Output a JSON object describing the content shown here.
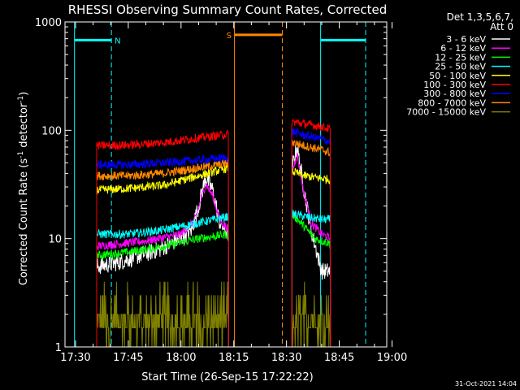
{
  "chart_data": {
    "type": "line",
    "title": "RHESSI Observing Summary Count Rates, Corrected",
    "xlabel": "Start Time (26-Sep-15 17:22:22)",
    "ylabel_main": "Corrected Count Rate (s",
    "ylabel_sup1": "-1",
    "ylabel_mid": " detector",
    "ylabel_sup2": "-1",
    "ylabel_end": ")",
    "timestamp": "31-Oct-2021 14:04",
    "y_scale": "log",
    "ylim": [
      1,
      1000
    ],
    "xlim_minutes": [
      -3.0,
      88.5
    ],
    "x_ticks": [
      {
        "label": "17:30",
        "value": 0
      },
      {
        "label": "17:45",
        "value": 15
      },
      {
        "label": "18:00",
        "value": 30
      },
      {
        "label": "18:15",
        "value": 45
      },
      {
        "label": "18:30",
        "value": 60
      },
      {
        "label": "18:45",
        "value": 75
      },
      {
        "label": "19:00",
        "value": 90
      }
    ],
    "y_ticks": [
      {
        "label": "1",
        "value": 1
      },
      {
        "label": "10",
        "value": 10
      },
      {
        "label": "100",
        "value": 100
      },
      {
        "label": "1000",
        "value": 1000
      }
    ],
    "legend": {
      "title_line1": "Det 1,3,5,6,7,",
      "title_line2": "Att 0",
      "placement": "right"
    },
    "markers": [
      {
        "label": "N",
        "color": "#00ffff",
        "start": -0.3,
        "end": 10.2,
        "level": 680
      },
      {
        "label": "S",
        "color": "#ff8800",
        "start": 45.2,
        "end": 58.8,
        "level": 760
      },
      {
        "label": "",
        "color": "#00ffff",
        "start": 69.7,
        "end": 82.5,
        "level": 680
      }
    ],
    "segments": [
      [
        6,
        43.5
      ],
      [
        61.5,
        72.5
      ]
    ],
    "series": [
      {
        "name": "3 - 6 keV",
        "color": "#ffffff",
        "seg1": [
          [
            6,
            5.5
          ],
          [
            12,
            6
          ],
          [
            24,
            8
          ],
          [
            30,
            10
          ],
          [
            33,
            12
          ],
          [
            35,
            20
          ],
          [
            37,
            37
          ],
          [
            39,
            28
          ],
          [
            41,
            14
          ],
          [
            43.5,
            11
          ]
        ],
        "seg2": [
          [
            61.5,
            45
          ],
          [
            63,
            70
          ],
          [
            65,
            28
          ],
          [
            67,
            12
          ],
          [
            70,
            5
          ],
          [
            72.5,
            5
          ]
        ]
      },
      {
        "name": "6 - 12 keV",
        "color": "#ff00ff",
        "seg1": [
          [
            6,
            8.5
          ],
          [
            20,
            9.5
          ],
          [
            30,
            11
          ],
          [
            34,
            15
          ],
          [
            37,
            32
          ],
          [
            39,
            25
          ],
          [
            41,
            15
          ],
          [
            43.5,
            12
          ]
        ],
        "seg2": [
          [
            61.5,
            40
          ],
          [
            63,
            60
          ],
          [
            65,
            26
          ],
          [
            67,
            14
          ],
          [
            70,
            11
          ],
          [
            72.5,
            10
          ]
        ]
      },
      {
        "name": "12 - 25 keV",
        "color": "#00ff00",
        "seg1": [
          [
            6,
            7
          ],
          [
            15,
            7.5
          ],
          [
            25,
            8.5
          ],
          [
            35,
            10
          ],
          [
            43.5,
            11
          ]
        ],
        "seg2": [
          [
            61.5,
            17
          ],
          [
            65,
            13
          ],
          [
            68,
            10
          ],
          [
            72.5,
            9
          ]
        ]
      },
      {
        "name": "25 - 50 keV",
        "color": "#00ffff",
        "seg1": [
          [
            6,
            11
          ],
          [
            15,
            11
          ],
          [
            25,
            12
          ],
          [
            35,
            14
          ],
          [
            43.5,
            16
          ]
        ],
        "seg2": [
          [
            61.5,
            17
          ],
          [
            65,
            16
          ],
          [
            70,
            15
          ],
          [
            72.5,
            15
          ]
        ]
      },
      {
        "name": "50 - 100 keV",
        "color": "#ffff00",
        "seg1": [
          [
            6,
            28
          ],
          [
            15,
            29
          ],
          [
            25,
            31
          ],
          [
            35,
            38
          ],
          [
            43.5,
            45
          ]
        ],
        "seg2": [
          [
            61.5,
            42
          ],
          [
            65,
            38
          ],
          [
            70,
            36
          ],
          [
            72.5,
            35
          ]
        ]
      },
      {
        "name": "100 - 300 keV",
        "color": "#ff0000",
        "seg1": [
          [
            6,
            72
          ],
          [
            15,
            73
          ],
          [
            25,
            77
          ],
          [
            35,
            85
          ],
          [
            43.5,
            92
          ]
        ],
        "seg2": [
          [
            61.5,
            120
          ],
          [
            65,
            115
          ],
          [
            70,
            108
          ],
          [
            72.5,
            102
          ]
        ]
      },
      {
        "name": "300 - 800 keV",
        "color": "#0000ff",
        "seg1": [
          [
            6,
            48
          ],
          [
            15,
            48
          ],
          [
            25,
            50
          ],
          [
            35,
            53
          ],
          [
            43.5,
            56
          ]
        ],
        "seg2": [
          [
            61.5,
            98
          ],
          [
            65,
            90
          ],
          [
            70,
            83
          ],
          [
            72.5,
            78
          ]
        ]
      },
      {
        "name": "800 - 7000 keV",
        "color": "#ff8800",
        "seg1": [
          [
            6,
            38
          ],
          [
            15,
            38
          ],
          [
            25,
            40
          ],
          [
            35,
            45
          ],
          [
            43.5,
            50
          ]
        ],
        "seg2": [
          [
            61.5,
            78
          ],
          [
            65,
            72
          ],
          [
            70,
            66
          ],
          [
            72.5,
            62
          ]
        ]
      },
      {
        "name": "7000 - 15000 keV",
        "color": "#808000",
        "seg1": [
          [
            6,
            1.5
          ],
          [
            43.5,
            2
          ]
        ],
        "seg2": [
          [
            61.5,
            1.5
          ],
          [
            72.5,
            1.5
          ]
        ]
      }
    ]
  }
}
